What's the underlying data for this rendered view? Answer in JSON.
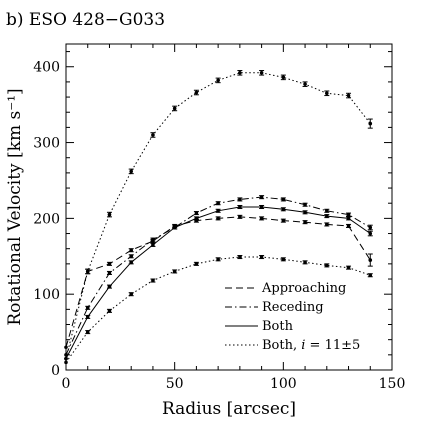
{
  "chart_data": {
    "type": "line",
    "panel_label": "b) ESO 428−G033",
    "xlabel": "Radius [arcsec]",
    "ylabel": "Rotational Velocity [km s⁻¹]",
    "xlim": [
      0,
      150
    ],
    "ylim": [
      0,
      430
    ],
    "xticks": [
      0,
      50,
      100,
      150
    ],
    "yticks": [
      0,
      100,
      200,
      300,
      400
    ],
    "x_tick_labels": [
      "0",
      "50",
      "100",
      "150"
    ],
    "y_tick_labels": [
      "0",
      "100",
      "200",
      "300",
      "400"
    ],
    "grid": false,
    "legend_position": "lower-right",
    "series": [
      {
        "name": "Approaching",
        "style": "dashed",
        "x": [
          0,
          10,
          20,
          30,
          40,
          50,
          60,
          70,
          80,
          90,
          100,
          110,
          120,
          130,
          140
        ],
        "y": [
          30,
          130,
          140,
          158,
          170,
          190,
          197,
          200,
          202,
          200,
          197,
          195,
          192,
          190,
          145
        ],
        "errors": [
          0,
          3,
          2,
          2,
          2,
          2,
          2,
          2,
          2,
          2,
          2,
          2,
          2,
          2,
          8
        ]
      },
      {
        "name": "Receding",
        "style": "dashdot",
        "x": [
          0,
          10,
          20,
          30,
          40,
          50,
          60,
          70,
          80,
          90,
          100,
          110,
          120,
          130,
          140
        ],
        "y": [
          20,
          82,
          128,
          150,
          172,
          188,
          207,
          220,
          225,
          228,
          225,
          218,
          210,
          205,
          188
        ],
        "errors": [
          0,
          2,
          2,
          2,
          2,
          2,
          2,
          2,
          2,
          2,
          2,
          2,
          2,
          2,
          3
        ]
      },
      {
        "name": "Both",
        "style": "solid",
        "x": [
          0,
          10,
          20,
          30,
          40,
          50,
          60,
          70,
          80,
          90,
          100,
          110,
          120,
          130,
          140
        ],
        "y": [
          15,
          70,
          110,
          142,
          165,
          188,
          200,
          210,
          215,
          215,
          212,
          208,
          203,
          200,
          180
        ],
        "errors": [
          0,
          2,
          2,
          2,
          2,
          2,
          2,
          2,
          2,
          2,
          2,
          2,
          2,
          2,
          3
        ]
      },
      {
        "name": "Both, i = 11±5",
        "style": "dotted",
        "x": [
          0,
          10,
          20,
          30,
          40,
          50,
          60,
          70,
          80,
          90,
          100,
          110,
          120,
          130,
          140
        ],
        "y": [
          15,
          130,
          205,
          262,
          310,
          345,
          366,
          382,
          392,
          392,
          386,
          377,
          365,
          362,
          325
        ],
        "errors": [
          0,
          3,
          3,
          3,
          3,
          3,
          3,
          3,
          3,
          3,
          3,
          3,
          3,
          3,
          6
        ]
      },
      {
        "name": "",
        "style": "dotted",
        "x": [
          0,
          10,
          20,
          30,
          40,
          50,
          60,
          70,
          80,
          90,
          100,
          110,
          120,
          130,
          140
        ],
        "y": [
          10,
          50,
          78,
          100,
          118,
          130,
          140,
          146,
          149,
          149,
          146,
          142,
          138,
          135,
          125
        ],
        "errors": [
          0,
          2,
          2,
          2,
          2,
          2,
          2,
          2,
          2,
          2,
          2,
          2,
          2,
          2,
          2
        ]
      }
    ],
    "legend": {
      "entries": [
        {
          "style": "dashed",
          "label": "Approaching"
        },
        {
          "style": "dashdot",
          "label": "Receding"
        },
        {
          "style": "solid",
          "label": "Both"
        },
        {
          "style": "dotted",
          "label_prefix": "Both, ",
          "label_italic": "i",
          "label_suffix": " = 11±5"
        }
      ]
    }
  }
}
